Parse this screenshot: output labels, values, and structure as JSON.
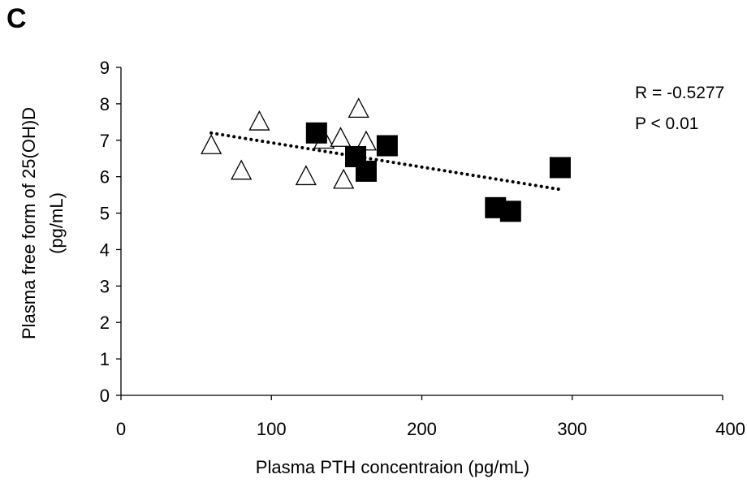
{
  "panel_label": "C",
  "chart_data": {
    "type": "scatter",
    "xlabel": "Plasma PTH concentraion (pg/mL)",
    "ylabel_lines": [
      "Plasma free form of 25(OH)D",
      "(pg/mL)"
    ],
    "xlim": [
      0,
      400
    ],
    "ylim": [
      0,
      9
    ],
    "x_ticks": [
      0,
      100,
      200,
      300,
      400
    ],
    "y_ticks": [
      0,
      1,
      2,
      3,
      4,
      5,
      6,
      7,
      8,
      9
    ],
    "grid": false,
    "series": [
      {
        "marker": "open-triangle",
        "color": "#000000",
        "points": [
          {
            "x": 60,
            "y": 6.85
          },
          {
            "x": 80,
            "y": 6.15
          },
          {
            "x": 92,
            "y": 7.5
          },
          {
            "x": 123,
            "y": 6.0
          },
          {
            "x": 135,
            "y": 7.0
          },
          {
            "x": 146,
            "y": 7.05
          },
          {
            "x": 148,
            "y": 5.9
          },
          {
            "x": 158,
            "y": 7.85
          },
          {
            "x": 163,
            "y": 6.95
          }
        ]
      },
      {
        "marker": "filled-square",
        "color": "#000000",
        "points": [
          {
            "x": 130,
            "y": 7.2
          },
          {
            "x": 156,
            "y": 6.55
          },
          {
            "x": 163,
            "y": 6.15
          },
          {
            "x": 177,
            "y": 6.85
          },
          {
            "x": 249,
            "y": 5.15
          },
          {
            "x": 259,
            "y": 5.05
          },
          {
            "x": 292,
            "y": 6.25
          }
        ]
      }
    ],
    "trendline": {
      "style": "dotted",
      "color": "#000000",
      "x": [
        60,
        292
      ],
      "y": [
        7.2,
        5.65
      ]
    },
    "annotations": [
      "R = -0.5277",
      "P < 0.01"
    ]
  }
}
